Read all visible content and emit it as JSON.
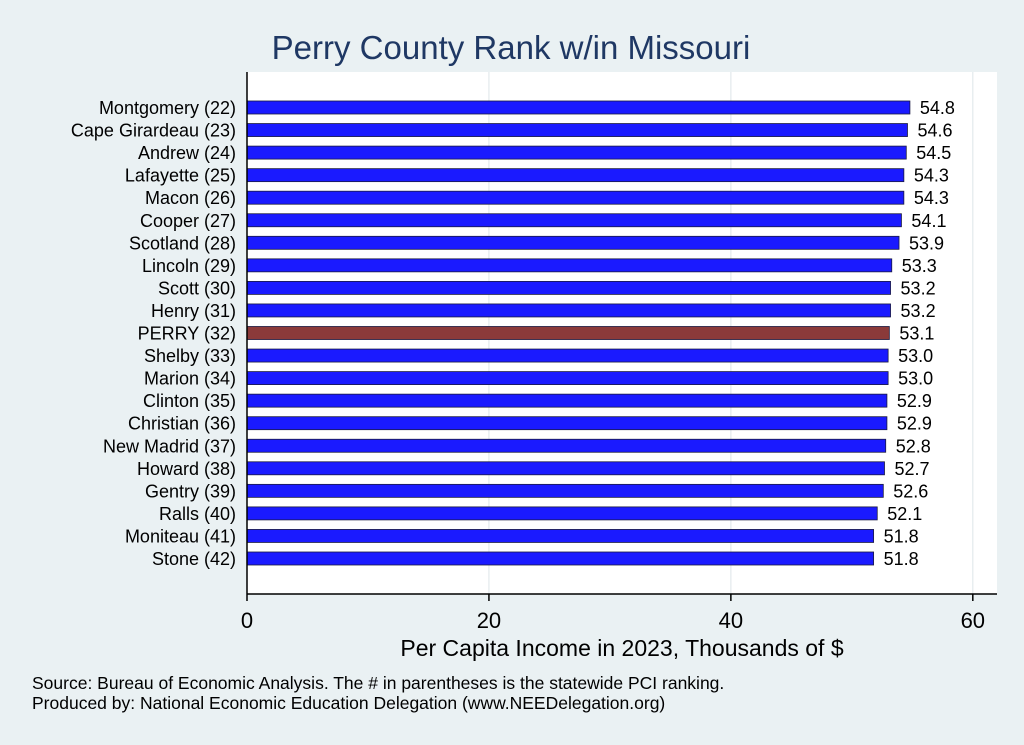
{
  "chart_data": {
    "type": "bar",
    "orientation": "horizontal",
    "title": "Perry County Rank w/in Missouri",
    "xlabel": "Per Capita Income in 2023, Thousands of $",
    "xlim": [
      0,
      62
    ],
    "xticks": [
      0,
      20,
      40,
      60
    ],
    "grid": "vertical",
    "categories": [
      "Montgomery (22)",
      "Cape Girardeau (23)",
      "Andrew (24)",
      "Lafayette (25)",
      "Macon (26)",
      "Cooper (27)",
      "Scotland (28)",
      "Lincoln (29)",
      "Scott (30)",
      "Henry (31)",
      "PERRY (32)",
      "Shelby (33)",
      "Marion (34)",
      "Clinton (35)",
      "Christian (36)",
      "New Madrid (37)",
      "Howard (38)",
      "Gentry (39)",
      "Ralls (40)",
      "Moniteau (41)",
      "Stone (42)"
    ],
    "values": [
      54.8,
      54.6,
      54.5,
      54.3,
      54.3,
      54.1,
      53.9,
      53.3,
      53.2,
      53.2,
      53.1,
      53.0,
      53.0,
      52.9,
      52.9,
      52.8,
      52.7,
      52.6,
      52.1,
      51.8,
      51.8
    ],
    "value_labels": [
      "54.8",
      "54.6",
      "54.5",
      "54.3",
      "54.3",
      "54.1",
      "53.9",
      "53.3",
      "53.2",
      "53.2",
      "53.1",
      "53.0",
      "53.0",
      "52.9",
      "52.9",
      "52.8",
      "52.7",
      "52.6",
      "52.1",
      "51.8",
      "51.8"
    ],
    "highlight_category": "PERRY (32)",
    "colors": {
      "bar": "#1a1aff",
      "highlight": "#8b3a3a",
      "title": "#1f3864",
      "background": "#eaf1f3",
      "plot": "#ffffff"
    }
  },
  "footer": {
    "source": "Source: Bureau of Economic Analysis. The # in parentheses is the statewide PCI ranking.",
    "producer": "Produced by: National Economic Education Delegation (www.NEEDelegation.org)"
  }
}
